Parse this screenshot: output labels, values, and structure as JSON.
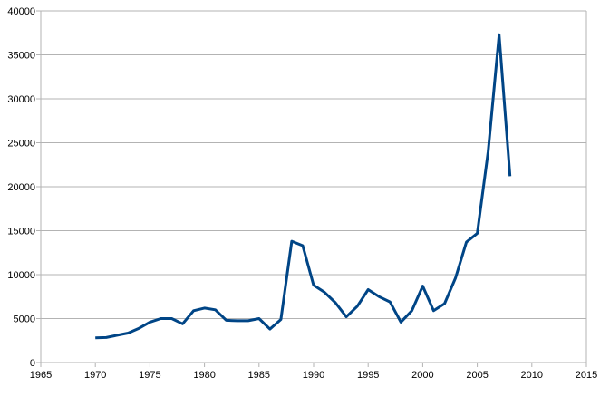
{
  "chart_data": {
    "type": "line",
    "title": "",
    "xlabel": "",
    "ylabel": "",
    "xlim": [
      1965,
      2015
    ],
    "ylim": [
      0,
      40000
    ],
    "x_ticks": [
      "1965",
      "1970",
      "1975",
      "1980",
      "1985",
      "1990",
      "1995",
      "2000",
      "2005",
      "2010",
      "2015"
    ],
    "y_ticks": [
      "0",
      "5000",
      "10000",
      "15000",
      "20000",
      "25000",
      "30000",
      "35000",
      "40000"
    ],
    "grid": "horizontal",
    "legend": "none",
    "line_color": "#004586",
    "series": [
      {
        "x": [
          1970,
          1971,
          1972,
          1973,
          1974,
          1975,
          1976,
          1977,
          1978,
          1979,
          1980,
          1981,
          1982,
          1983,
          1984,
          1985,
          1986,
          1987,
          1988,
          1989,
          1990,
          1991,
          1992,
          1993,
          1994,
          1995,
          1996,
          1997,
          1998,
          1999,
          2000,
          2001,
          2002,
          2003,
          2004,
          2005,
          2006,
          2007,
          2008
        ],
        "values": [
          2800,
          2850,
          3100,
          3350,
          3900,
          4600,
          5000,
          5000,
          4400,
          5900,
          6200,
          6000,
          4800,
          4750,
          4750,
          5000,
          3800,
          4900,
          13800,
          13300,
          8800,
          8000,
          6800,
          5200,
          6400,
          8300,
          7500,
          6900,
          4600,
          5900,
          8700,
          5900,
          6700,
          9600,
          13700,
          14700,
          24000,
          37300,
          21200
        ]
      }
    ]
  }
}
